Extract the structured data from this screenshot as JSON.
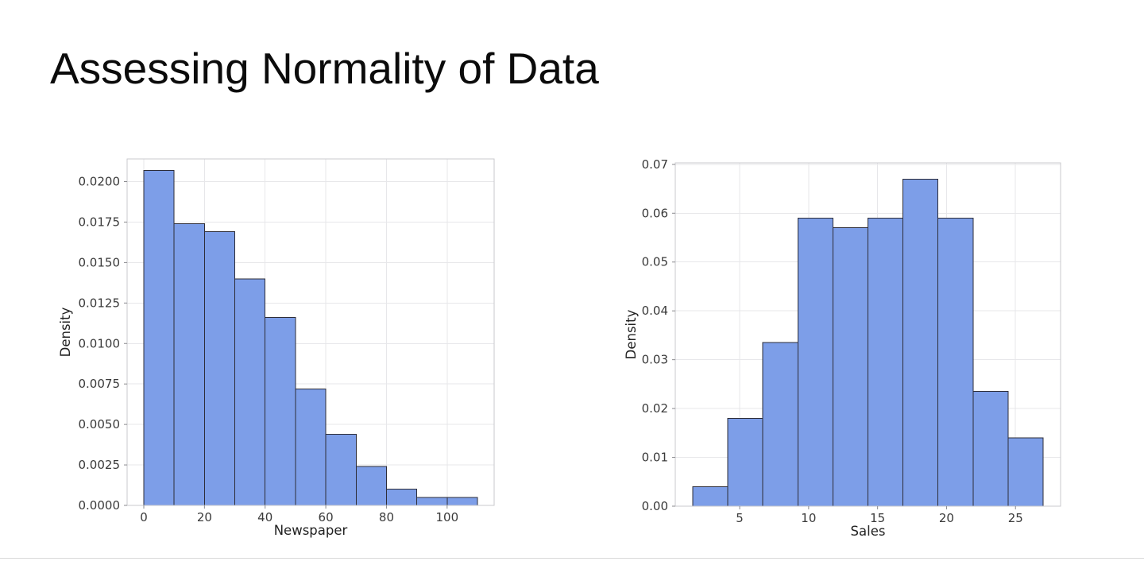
{
  "slide": {
    "title": "Assessing Normality of Data"
  },
  "chart_data": [
    {
      "type": "bar",
      "subtype": "histogram",
      "title": "",
      "xlabel": "Newspaper",
      "ylabel": "Density",
      "bin_edges": [
        0,
        10,
        20,
        30,
        40,
        50,
        60,
        70,
        80,
        90,
        100,
        110
      ],
      "densities": [
        0.0207,
        0.0174,
        0.0169,
        0.014,
        0.0116,
        0.0072,
        0.0044,
        0.0024,
        0.001,
        0.0005,
        0.0005
      ],
      "xlim": [
        -5.5,
        115.5
      ],
      "ylim": [
        0,
        0.0214
      ],
      "xticks": {
        "values": [
          0,
          20,
          40,
          60,
          80,
          100
        ],
        "labels": [
          "0",
          "20",
          "40",
          "60",
          "80",
          "100"
        ]
      },
      "yticks": {
        "values": [
          0.0,
          0.0025,
          0.005,
          0.0075,
          0.01,
          0.0125,
          0.015,
          0.0175,
          0.02
        ],
        "labels": [
          "0.0000",
          "0.0025",
          "0.0050",
          "0.0075",
          "0.0100",
          "0.0125",
          "0.0150",
          "0.0175",
          "0.0200"
        ]
      },
      "grid": true,
      "legend": null,
      "bar_fill": "#7d9ee8",
      "bar_stroke": "#2d2d38",
      "grid_color": "#e7e7ea",
      "frame_color": "#c9c9cd"
    },
    {
      "type": "bar",
      "subtype": "histogram",
      "title": "",
      "xlabel": "Sales",
      "ylabel": "Density",
      "bin_edges": [
        1.6,
        4.14,
        6.68,
        9.22,
        11.76,
        14.3,
        16.84,
        19.38,
        21.92,
        24.46,
        27.0
      ],
      "densities": [
        0.004,
        0.018,
        0.0335,
        0.059,
        0.057,
        0.059,
        0.067,
        0.059,
        0.0235,
        0.014
      ],
      "xlim": [
        0.33,
        28.27
      ],
      "ylim": [
        0,
        0.0703
      ],
      "xticks": {
        "values": [
          5,
          10,
          15,
          20,
          25
        ],
        "labels": [
          "5",
          "10",
          "15",
          "20",
          "25"
        ]
      },
      "yticks": {
        "values": [
          0.0,
          0.01,
          0.02,
          0.03,
          0.04,
          0.05,
          0.06,
          0.07
        ],
        "labels": [
          "0.00",
          "0.01",
          "0.02",
          "0.03",
          "0.04",
          "0.05",
          "0.06",
          "0.07"
        ]
      },
      "grid": true,
      "legend": null,
      "bar_fill": "#7d9ee8",
      "bar_stroke": "#2d2d38",
      "grid_color": "#e7e7ea",
      "frame_color": "#c9c9cd"
    }
  ]
}
